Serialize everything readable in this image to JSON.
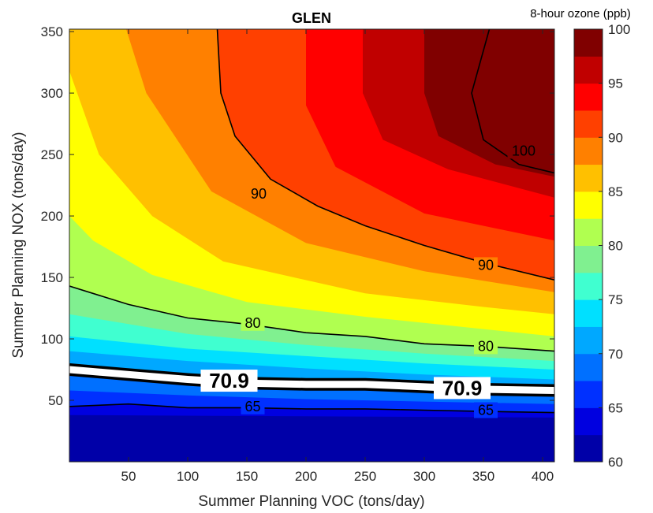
{
  "chart_data": {
    "type": "contour",
    "title": "GLEN",
    "xlabel": "Summer Planning VOC (tons/day)",
    "ylabel": "Summer Planning NOX (tons/day)",
    "xlim": [
      0,
      410
    ],
    "ylim": [
      0,
      352
    ],
    "xticks": [
      50,
      100,
      150,
      200,
      250,
      300,
      350,
      400
    ],
    "yticks": [
      50,
      100,
      150,
      200,
      250,
      300,
      350
    ],
    "colorbar": {
      "label": "8-hour ozone (ppb)",
      "range": [
        60,
        100
      ],
      "step": 2.5,
      "ticks": [
        60,
        65,
        70,
        75,
        80,
        85,
        90,
        95,
        100
      ],
      "colors": [
        "#0000a8",
        "#0000e0",
        "#0030ff",
        "#0070ff",
        "#00a8ff",
        "#00e0ff",
        "#40ffd0",
        "#80f090",
        "#b0ff50",
        "#ffff00",
        "#ffc000",
        "#ff8000",
        "#ff4000",
        "#ff0000",
        "#c00000",
        "#800000"
      ]
    },
    "contour_lines": [
      {
        "level": "65",
        "x": [
          0,
          50,
          100,
          150,
          200,
          250,
          300,
          350,
          410
        ],
        "y": [
          45,
          47,
          44,
          44,
          43,
          43,
          42,
          41,
          40
        ]
      },
      {
        "level": "70.9",
        "x": [
          0,
          50,
          100,
          150,
          200,
          250,
          300,
          350,
          410
        ],
        "y": [
          75,
          71,
          67,
          64,
          63,
          63,
          61,
          59,
          58
        ]
      },
      {
        "level": "80",
        "x": [
          0,
          50,
          100,
          150,
          200,
          250,
          300,
          350,
          410
        ],
        "y": [
          143,
          128,
          117,
          112,
          105,
          102,
          96,
          94,
          90
        ]
      },
      {
        "level": "90",
        "x": [
          125,
          128,
          140,
          170,
          210,
          250,
          300,
          350,
          410
        ],
        "y": [
          352,
          300,
          265,
          230,
          208,
          192,
          176,
          162,
          148
        ]
      },
      {
        "level": "100",
        "x": [
          355,
          340,
          350,
          380,
          410
        ],
        "y": [
          352,
          300,
          262,
          242,
          235
        ]
      }
    ],
    "contour_labels": [
      {
        "text": "90",
        "x": 160,
        "y": 218
      },
      {
        "text": "90",
        "x": 352,
        "y": 160
      },
      {
        "text": "100",
        "x": 384,
        "y": 253
      },
      {
        "text": "80",
        "x": 155,
        "y": 113
      },
      {
        "text": "80",
        "x": 352,
        "y": 94
      },
      {
        "text": "65",
        "x": 155,
        "y": 45
      },
      {
        "text": "65",
        "x": 352,
        "y": 42
      },
      {
        "text": "70.9",
        "x": 135,
        "y": 66
      },
      {
        "text": "70.9",
        "x": 332,
        "y": 60
      }
    ],
    "boundaries": [
      {
        "level": 62.5,
        "x": [
          0,
          410
        ],
        "y": [
          38,
          36
        ]
      },
      {
        "level": 65,
        "x": [
          0,
          50,
          100,
          150,
          200,
          250,
          300,
          350,
          410
        ],
        "y": [
          45,
          47,
          44,
          44,
          43,
          43,
          42,
          41,
          40
        ]
      },
      {
        "level": 67.5,
        "x": [
          0,
          100,
          200,
          300,
          410
        ],
        "y": [
          58,
          54,
          51,
          49,
          47
        ]
      },
      {
        "level": 70,
        "x": [
          0,
          100,
          200,
          300,
          410
        ],
        "y": [
          71,
          65,
          60,
          57,
          55
        ]
      },
      {
        "level": 72.5,
        "x": [
          0,
          100,
          200,
          300,
          410
        ],
        "y": [
          90,
          82,
          76,
          71,
          67
        ]
      },
      {
        "level": 75,
        "x": [
          0,
          100,
          200,
          300,
          410
        ],
        "y": [
          102,
          92,
          86,
          80,
          75
        ]
      },
      {
        "level": 77.5,
        "x": [
          0,
          100,
          200,
          300,
          410
        ],
        "y": [
          120,
          104,
          95,
          88,
          82
        ]
      },
      {
        "level": 80,
        "x": [
          0,
          50,
          100,
          150,
          200,
          250,
          300,
          350,
          410
        ],
        "y": [
          143,
          128,
          117,
          112,
          105,
          102,
          96,
          94,
          90
        ]
      },
      {
        "level": 82.5,
        "x": [
          0,
          20,
          70,
          150,
          250,
          350,
          410
        ],
        "y": [
          200,
          180,
          152,
          130,
          118,
          108,
          102
        ]
      },
      {
        "level": 85,
        "x": [
          0,
          25,
          70,
          130,
          250,
          350,
          410
        ],
        "y": [
          318,
          250,
          200,
          163,
          137,
          126,
          120
        ]
      },
      {
        "level": 87.5,
        "x": [
          48,
          65,
          120,
          200,
          300,
          410
        ],
        "y": [
          352,
          300,
          220,
          178,
          155,
          138
        ]
      },
      {
        "level": 90,
        "x": [
          125,
          128,
          140,
          170,
          210,
          250,
          300,
          350,
          410
        ],
        "y": [
          352,
          300,
          265,
          230,
          208,
          192,
          176,
          162,
          148
        ]
      },
      {
        "level": 92.5,
        "x": [
          200,
          200,
          225,
          300,
          410
        ],
        "y": [
          352,
          290,
          240,
          202,
          180
        ]
      },
      {
        "level": 95,
        "x": [
          248,
          248,
          265,
          320,
          410
        ],
        "y": [
          352,
          300,
          262,
          238,
          215
        ]
      },
      {
        "level": 97.5,
        "x": [
          300,
          300,
          312,
          360,
          410
        ],
        "y": [
          352,
          300,
          265,
          242,
          232
        ]
      }
    ]
  }
}
